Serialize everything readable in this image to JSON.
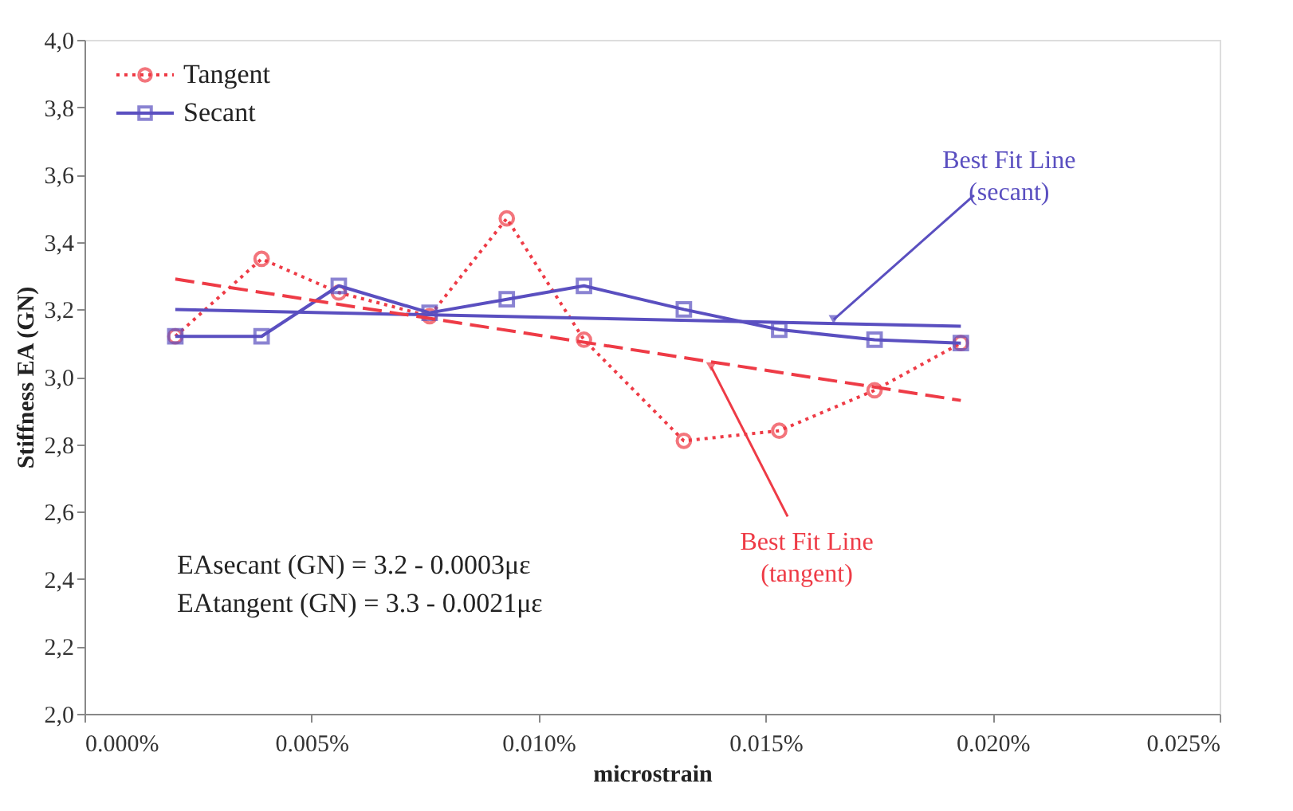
{
  "chart_data": {
    "type": "line",
    "xlabel": "microstrain",
    "ylabel": "Stiffness EA (GN)",
    "xlim": [
      0,
      0.025
    ],
    "ylim": [
      2.0,
      4.0
    ],
    "xticks": [
      {
        "value": 0,
        "label": "0.000%"
      },
      {
        "value": 0.005,
        "label": "0.005%"
      },
      {
        "value": 0.01,
        "label": "0.010%"
      },
      {
        "value": 0.015,
        "label": "0.015%"
      },
      {
        "value": 0.02,
        "label": "0.020%"
      },
      {
        "value": 0.025,
        "label": "0.025%"
      }
    ],
    "yticks": [
      {
        "value": 2.0,
        "label": "2,0"
      },
      {
        "value": 2.2,
        "label": "2,2"
      },
      {
        "value": 2.4,
        "label": "2,4"
      },
      {
        "value": 2.6,
        "label": "2,6"
      },
      {
        "value": 2.8,
        "label": "2,8"
      },
      {
        "value": 3.0,
        "label": "3,0"
      },
      {
        "value": 3.2,
        "label": "3,2"
      },
      {
        "value": 3.4,
        "label": "3,4"
      },
      {
        "value": 3.6,
        "label": "3,6"
      },
      {
        "value": 3.8,
        "label": "3,8"
      },
      {
        "value": 4.0,
        "label": "4,0"
      }
    ],
    "grid": false,
    "legend": "top left",
    "series": [
      {
        "name": "Tangent",
        "color": "#ee3b46",
        "marker": "circle",
        "line_style": "dotted",
        "x": [
          0.002,
          0.0039,
          0.0056,
          0.0076,
          0.0093,
          0.011,
          0.0132,
          0.0153,
          0.0174,
          0.0193
        ],
        "values": [
          3.12,
          3.35,
          3.25,
          3.18,
          3.47,
          3.11,
          2.81,
          2.84,
          2.96,
          3.1
        ]
      },
      {
        "name": "Secant",
        "color": "#5a4fc0",
        "marker": "square",
        "line_style": "solid",
        "x": [
          0.002,
          0.0039,
          0.0056,
          0.0076,
          0.0093,
          0.011,
          0.0132,
          0.0153,
          0.0174,
          0.0193
        ],
        "values": [
          3.12,
          3.12,
          3.27,
          3.19,
          3.23,
          3.27,
          3.2,
          3.14,
          3.11,
          3.1
        ]
      },
      {
        "type": "line",
        "color": "#5a4fc0",
        "marker": "none",
        "line_style": "solid",
        "x": [
          0.002,
          0.0193
        ],
        "values": [
          3.2,
          3.15
        ]
      },
      {
        "type": "line",
        "color": "#ee3b46",
        "marker": "none",
        "line_style": "dashed",
        "x": [
          0.002,
          0.0193
        ],
        "values": [
          3.29,
          2.93
        ]
      }
    ],
    "annotations": [
      {
        "text": "Best Fit Line\n(secant)",
        "x": 0.0165,
        "y": 3.17
      },
      {
        "text": "Best Fit Line\n(tangent)",
        "x": 0.0138,
        "y": 3.03
      },
      "EAsecant (GN) = 3.2 - 0.0003με",
      "EAtangent (GN) = 3.3 - 0.0021με"
    ]
  }
}
